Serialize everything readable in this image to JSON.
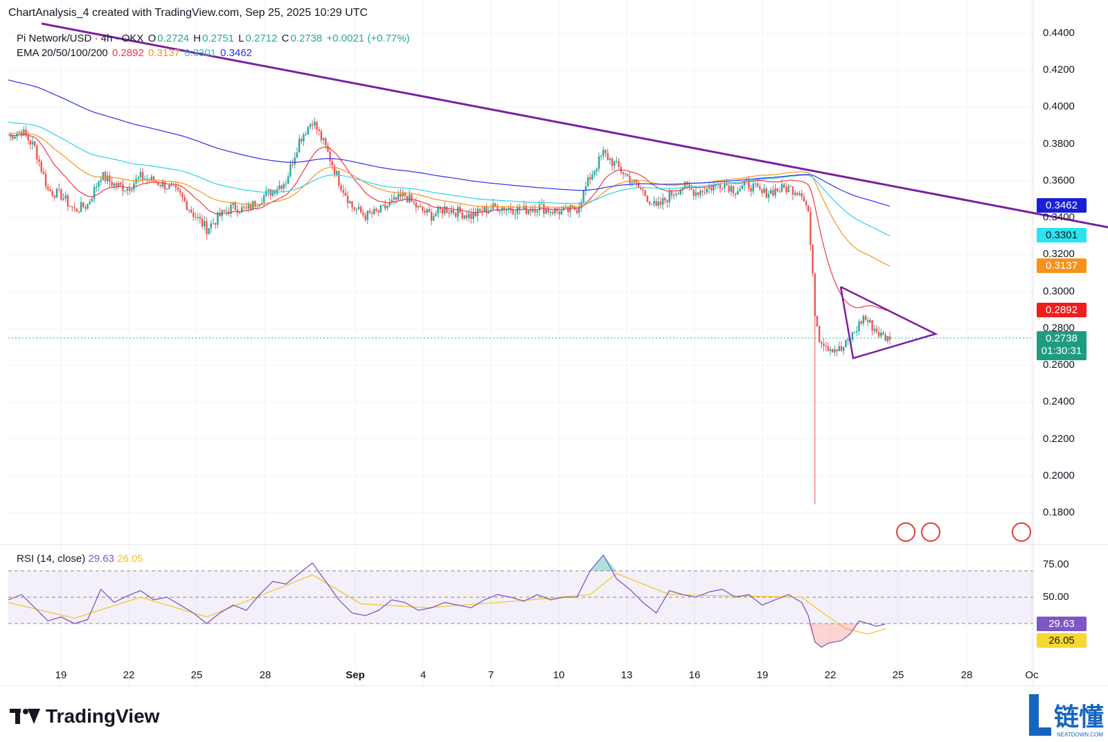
{
  "header": {
    "text": "ChartAnalysis_4 created with TradingView.com, Sep 25, 2025 10:29 UTC"
  },
  "legend": {
    "symbol": "Pi Network/USD · 4h · OKX",
    "o_label": "O",
    "o": "0.2724",
    "h_label": "H",
    "h": "0.2751",
    "l_label": "L",
    "l": "0.2712",
    "c_label": "C",
    "c": "0.2738",
    "change": "+0.0021 (+0.77%)",
    "ema_label": "EMA 20/50/100/200",
    "ema20": "0.2892",
    "ema50": "0.3137",
    "ema100": "0.3301",
    "ema200": "0.3462"
  },
  "rsi_legend": {
    "label": "RSI (14, close)",
    "rsi": "29.63",
    "ma": "26.05"
  },
  "price_boxes": {
    "ema200": "0.3462",
    "ema100": "0.3301",
    "ema50": "0.3137",
    "ema20": "0.2892",
    "last": "0.2738",
    "countdown": "01:30:31",
    "rsi": "29.63",
    "rsi_ma": "26.05"
  },
  "colors": {
    "up": "#26a69a",
    "down": "#ef5350",
    "ema20": "#f23645",
    "ema50": "#f7931a",
    "ema100": "#29d4e0",
    "ema200": "#2a2ef0",
    "trend": "#7b1fa2",
    "rsi": "#7e57c2",
    "rsi_ma": "#f5c518"
  },
  "brand": {
    "name": "TradingView",
    "watermark_main": "链懂",
    "watermark_sub": "NEATDOWN.COM"
  },
  "chart_data": {
    "type": "candlestick",
    "timeframe": "4h",
    "y_ticks": [
      "0.4400",
      "0.4200",
      "0.4000",
      "0.3800",
      "0.3600",
      "0.3400",
      "0.3200",
      "0.3000",
      "0.2800",
      "0.2600",
      "0.2400",
      "0.2200",
      "0.2000",
      "0.1800"
    ],
    "ylim": [
      0.17,
      0.45
    ],
    "x_ticks": [
      "19",
      "22",
      "25",
      "28",
      "Sep",
      "4",
      "7",
      "10",
      "13",
      "16",
      "19",
      "22",
      "25",
      "28",
      "Oc"
    ],
    "rsi_ticks": [
      "75.00",
      "50.00"
    ],
    "rsi_levels": [
      70,
      50,
      30
    ],
    "rsi_ylim": [
      0,
      100
    ],
    "close_path": [
      [
        0,
        0.384
      ],
      [
        6,
        0.387
      ],
      [
        12,
        0.378
      ],
      [
        18,
        0.355
      ],
      [
        24,
        0.352
      ],
      [
        30,
        0.344
      ],
      [
        36,
        0.347
      ],
      [
        42,
        0.363
      ],
      [
        48,
        0.358
      ],
      [
        54,
        0.356
      ],
      [
        60,
        0.362
      ],
      [
        66,
        0.36
      ],
      [
        72,
        0.357
      ],
      [
        78,
        0.352
      ],
      [
        84,
        0.342
      ],
      [
        90,
        0.334
      ],
      [
        96,
        0.341
      ],
      [
        102,
        0.346
      ],
      [
        108,
        0.344
      ],
      [
        114,
        0.35
      ],
      [
        120,
        0.355
      ],
      [
        126,
        0.36
      ],
      [
        132,
        0.382
      ],
      [
        138,
        0.393
      ],
      [
        144,
        0.378
      ],
      [
        150,
        0.36
      ],
      [
        156,
        0.346
      ],
      [
        162,
        0.341
      ],
      [
        168,
        0.343
      ],
      [
        174,
        0.348
      ],
      [
        180,
        0.352
      ],
      [
        186,
        0.345
      ],
      [
        192,
        0.341
      ],
      [
        198,
        0.345
      ],
      [
        204,
        0.343
      ],
      [
        210,
        0.341
      ],
      [
        216,
        0.344
      ],
      [
        222,
        0.346
      ],
      [
        228,
        0.345
      ],
      [
        234,
        0.344
      ],
      [
        240,
        0.346
      ],
      [
        246,
        0.344
      ],
      [
        252,
        0.343
      ],
      [
        258,
        0.345
      ],
      [
        264,
        0.362
      ],
      [
        270,
        0.375
      ],
      [
        276,
        0.368
      ],
      [
        282,
        0.361
      ],
      [
        288,
        0.354
      ],
      [
        294,
        0.345
      ],
      [
        300,
        0.352
      ],
      [
        306,
        0.357
      ],
      [
        312,
        0.354
      ],
      [
        318,
        0.356
      ],
      [
        324,
        0.359
      ],
      [
        330,
        0.355
      ],
      [
        336,
        0.358
      ],
      [
        342,
        0.353
      ],
      [
        348,
        0.355
      ],
      [
        354,
        0.356
      ],
      [
        360,
        0.354
      ],
      [
        363,
        0.343
      ],
      [
        366,
        0.289
      ],
      [
        368,
        0.275
      ],
      [
        372,
        0.27
      ],
      [
        378,
        0.268
      ],
      [
        384,
        0.278
      ],
      [
        388,
        0.286
      ],
      [
        392,
        0.281
      ],
      [
        396,
        0.276
      ],
      [
        400,
        0.2738
      ]
    ],
    "wick_low": {
      "x": 366,
      "value": 0.1845
    },
    "rsi_path": [
      [
        0,
        48
      ],
      [
        6,
        52
      ],
      [
        12,
        42
      ],
      [
        18,
        32
      ],
      [
        24,
        35
      ],
      [
        30,
        30
      ],
      [
        36,
        33
      ],
      [
        42,
        56
      ],
      [
        48,
        46
      ],
      [
        54,
        51
      ],
      [
        60,
        55
      ],
      [
        66,
        48
      ],
      [
        72,
        50
      ],
      [
        78,
        44
      ],
      [
        84,
        38
      ],
      [
        90,
        30
      ],
      [
        96,
        38
      ],
      [
        102,
        44
      ],
      [
        108,
        40
      ],
      [
        114,
        52
      ],
      [
        120,
        62
      ],
      [
        126,
        60
      ],
      [
        132,
        68
      ],
      [
        138,
        76
      ],
      [
        144,
        62
      ],
      [
        150,
        48
      ],
      [
        156,
        38
      ],
      [
        162,
        36
      ],
      [
        168,
        40
      ],
      [
        174,
        48
      ],
      [
        180,
        46
      ],
      [
        186,
        40
      ],
      [
        192,
        42
      ],
      [
        198,
        46
      ],
      [
        204,
        44
      ],
      [
        210,
        42
      ],
      [
        216,
        48
      ],
      [
        222,
        52
      ],
      [
        228,
        50
      ],
      [
        234,
        47
      ],
      [
        240,
        52
      ],
      [
        246,
        48
      ],
      [
        252,
        50
      ],
      [
        258,
        50
      ],
      [
        264,
        70
      ],
      [
        270,
        82
      ],
      [
        276,
        64
      ],
      [
        282,
        56
      ],
      [
        288,
        46
      ],
      [
        294,
        38
      ],
      [
        300,
        55
      ],
      [
        306,
        52
      ],
      [
        312,
        50
      ],
      [
        318,
        54
      ],
      [
        324,
        56
      ],
      [
        330,
        50
      ],
      [
        336,
        52
      ],
      [
        342,
        44
      ],
      [
        348,
        48
      ],
      [
        354,
        52
      ],
      [
        360,
        46
      ],
      [
        363,
        36
      ],
      [
        366,
        16
      ],
      [
        369,
        12
      ],
      [
        372,
        15
      ],
      [
        378,
        17
      ],
      [
        382,
        22
      ],
      [
        386,
        32
      ],
      [
        390,
        30
      ],
      [
        394,
        28
      ],
      [
        398,
        29.63
      ]
    ],
    "rsi_ma_path": [
      [
        0,
        46
      ],
      [
        30,
        34
      ],
      [
        60,
        50
      ],
      [
        90,
        35
      ],
      [
        120,
        55
      ],
      [
        138,
        67
      ],
      [
        160,
        45
      ],
      [
        190,
        42
      ],
      [
        230,
        47
      ],
      [
        264,
        52
      ],
      [
        276,
        68
      ],
      [
        300,
        52
      ],
      [
        330,
        51
      ],
      [
        360,
        50
      ],
      [
        368,
        40
      ],
      [
        380,
        26
      ],
      [
        390,
        22
      ],
      [
        398,
        26.05
      ]
    ]
  }
}
